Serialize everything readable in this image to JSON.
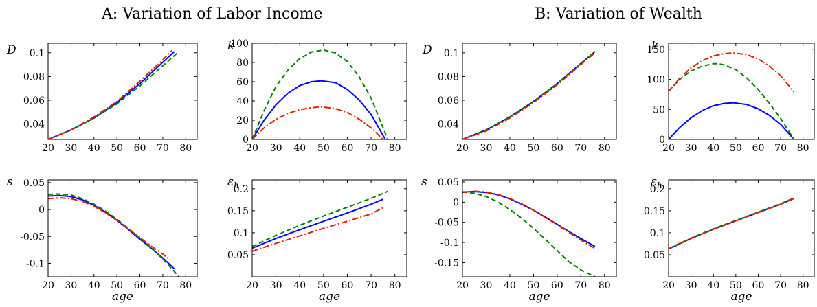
{
  "panels": [
    {
      "title": "A: Variation of Labor Income"
    },
    {
      "title": "B: Variation of Wealth"
    }
  ],
  "colors": {
    "blue": "#0000ff",
    "green": "#008000",
    "red": "#dd2200"
  },
  "chart_data": [
    {
      "type": "line",
      "panel": "A",
      "ylabel": "D",
      "xlabel": "",
      "xlim": [
        20,
        85
      ],
      "ylim": [
        0.027,
        0.108
      ],
      "xticks": [
        20,
        30,
        40,
        50,
        60,
        70,
        80
      ],
      "yticks": [
        0.04,
        0.06,
        0.08,
        0.1
      ],
      "series": [
        {
          "style": "solid",
          "color": "blue",
          "x": [
            20,
            30,
            40,
            50,
            60,
            70,
            75
          ],
          "y": [
            0.027,
            0.035,
            0.045,
            0.058,
            0.074,
            0.092,
            0.101
          ]
        },
        {
          "style": "dashed",
          "color": "green",
          "x": [
            20,
            30,
            40,
            50,
            60,
            70,
            77
          ],
          "y": [
            0.027,
            0.035,
            0.045,
            0.057,
            0.072,
            0.089,
            0.101
          ]
        },
        {
          "style": "dashdot",
          "color": "red",
          "x": [
            20,
            30,
            40,
            50,
            60,
            70,
            74
          ],
          "y": [
            0.027,
            0.035,
            0.046,
            0.059,
            0.076,
            0.094,
            0.102
          ]
        }
      ]
    },
    {
      "type": "line",
      "panel": "A",
      "ylabel": "k",
      "xlabel": "",
      "xlim": [
        20,
        85
      ],
      "ylim": [
        0,
        100
      ],
      "xticks": [
        20,
        30,
        40,
        50,
        60,
        70,
        80
      ],
      "yticks": [
        0,
        20,
        40,
        60,
        80,
        100
      ],
      "series": [
        {
          "style": "solid",
          "color": "blue",
          "x": [
            20,
            25,
            30,
            35,
            40,
            45,
            49,
            55,
            60,
            65,
            70,
            76
          ],
          "y": [
            0,
            20,
            36,
            48,
            56,
            60,
            61,
            59,
            52,
            41,
            26,
            0
          ]
        },
        {
          "style": "dashed",
          "color": "green",
          "x": [
            20,
            25,
            30,
            35,
            40,
            45,
            50,
            55,
            60,
            65,
            70,
            77
          ],
          "y": [
            0,
            30,
            55,
            72,
            84,
            91,
            93,
            90,
            81,
            65,
            43,
            0
          ]
        },
        {
          "style": "dashdot",
          "color": "red",
          "x": [
            20,
            25,
            30,
            35,
            40,
            45,
            49,
            55,
            60,
            65,
            70,
            75
          ],
          "y": [
            0,
            12,
            21,
            27,
            31,
            33,
            34,
            32,
            28,
            21,
            12,
            0
          ]
        }
      ]
    },
    {
      "type": "line",
      "panel": "B",
      "ylabel": "D",
      "xlabel": "",
      "xlim": [
        20,
        85
      ],
      "ylim": [
        0.027,
        0.108
      ],
      "xticks": [
        20,
        30,
        40,
        50,
        60,
        70,
        80
      ],
      "yticks": [
        0.04,
        0.06,
        0.08,
        0.1
      ],
      "series": [
        {
          "style": "solid",
          "color": "blue",
          "x": [
            20,
            30,
            40,
            50,
            60,
            70,
            76
          ],
          "y": [
            0.027,
            0.035,
            0.046,
            0.059,
            0.074,
            0.091,
            0.101
          ]
        },
        {
          "style": "dashed",
          "color": "green",
          "x": [
            20,
            30,
            40,
            50,
            60,
            70,
            76
          ],
          "y": [
            0.027,
            0.035,
            0.046,
            0.059,
            0.074,
            0.091,
            0.101
          ]
        },
        {
          "style": "dashdot",
          "color": "red",
          "x": [
            20,
            30,
            40,
            50,
            60,
            70,
            76
          ],
          "y": [
            0.027,
            0.034,
            0.045,
            0.058,
            0.073,
            0.09,
            0.1
          ]
        }
      ]
    },
    {
      "type": "line",
      "panel": "B",
      "ylabel": "k",
      "xlabel": "",
      "xlim": [
        20,
        85
      ],
      "ylim": [
        0,
        160
      ],
      "xticks": [
        20,
        30,
        40,
        50,
        60,
        70,
        80
      ],
      "yticks": [
        0,
        50,
        100,
        150
      ],
      "series": [
        {
          "style": "solid",
          "color": "blue",
          "x": [
            20,
            25,
            30,
            35,
            40,
            45,
            49,
            55,
            60,
            65,
            70,
            76
          ],
          "y": [
            0,
            20,
            36,
            48,
            56,
            60,
            61,
            58,
            51,
            40,
            25,
            0
          ]
        },
        {
          "style": "dashed",
          "color": "green",
          "x": [
            20,
            25,
            30,
            35,
            40,
            42,
            45,
            50,
            55,
            60,
            65,
            70,
            76
          ],
          "y": [
            80,
            100,
            114,
            122,
            126,
            126,
            124,
            116,
            102,
            83,
            60,
            35,
            0
          ]
        },
        {
          "style": "dashdot",
          "color": "red",
          "x": [
            20,
            25,
            30,
            35,
            40,
            45,
            49,
            55,
            60,
            65,
            70,
            76
          ],
          "y": [
            80,
            102,
            119,
            131,
            139,
            143,
            144,
            141,
            134,
            122,
            106,
            79
          ]
        }
      ]
    },
    {
      "type": "line",
      "panel": "A",
      "ylabel": "s",
      "xlabel": "age",
      "xlim": [
        20,
        85
      ],
      "ylim": [
        -0.125,
        0.055
      ],
      "xticks": [
        20,
        30,
        40,
        50,
        60,
        70,
        80
      ],
      "yticks": [
        -0.1,
        -0.05,
        0,
        0.05
      ],
      "series": [
        {
          "style": "solid",
          "color": "blue",
          "x": [
            20,
            25,
            30,
            35,
            40,
            45,
            50,
            55,
            60,
            65,
            70,
            75
          ],
          "y": [
            0.025,
            0.026,
            0.024,
            0.018,
            0.008,
            -0.005,
            -0.02,
            -0.037,
            -0.055,
            -0.072,
            -0.09,
            -0.11
          ]
        },
        {
          "style": "dashed",
          "color": "green",
          "x": [
            20,
            25,
            30,
            35,
            40,
            45,
            50,
            55,
            60,
            65,
            70,
            75,
            77
          ],
          "y": [
            0.028,
            0.029,
            0.027,
            0.02,
            0.01,
            -0.003,
            -0.018,
            -0.035,
            -0.053,
            -0.071,
            -0.092,
            -0.115,
            -0.125
          ]
        },
        {
          "style": "dashdot",
          "color": "red",
          "x": [
            20,
            25,
            30,
            35,
            40,
            45,
            50,
            55,
            60,
            65,
            70,
            73
          ],
          "y": [
            0.02,
            0.022,
            0.02,
            0.015,
            0.006,
            -0.006,
            -0.02,
            -0.036,
            -0.052,
            -0.068,
            -0.083,
            -0.093
          ]
        }
      ]
    },
    {
      "type": "line",
      "panel": "A",
      "ylabel": "ε_h",
      "xlabel": "age",
      "xlim": [
        20,
        85
      ],
      "ylim": [
        0,
        0.22
      ],
      "xticks": [
        20,
        30,
        40,
        50,
        60,
        70,
        80
      ],
      "yticks": [
        0.05,
        0.1,
        0.15,
        0.2
      ],
      "series": [
        {
          "style": "solid",
          "color": "blue",
          "x": [
            20,
            30,
            40,
            50,
            60,
            70,
            75
          ],
          "y": [
            0.065,
            0.087,
            0.107,
            0.126,
            0.145,
            0.165,
            0.176
          ]
        },
        {
          "style": "dashed",
          "color": "green",
          "x": [
            20,
            30,
            40,
            50,
            60,
            70,
            77
          ],
          "y": [
            0.069,
            0.094,
            0.117,
            0.138,
            0.158,
            0.178,
            0.194
          ]
        },
        {
          "style": "dashdot",
          "color": "red",
          "x": [
            20,
            30,
            40,
            50,
            60,
            70,
            75
          ],
          "y": [
            0.058,
            0.076,
            0.093,
            0.11,
            0.126,
            0.143,
            0.157
          ]
        }
      ]
    },
    {
      "type": "line",
      "panel": "B",
      "ylabel": "s",
      "xlabel": "age",
      "xlim": [
        20,
        85
      ],
      "ylim": [
        -0.185,
        0.055
      ],
      "xticks": [
        20,
        30,
        40,
        50,
        60,
        70,
        80
      ],
      "yticks": [
        -0.15,
        -0.1,
        -0.05,
        0,
        0.05
      ],
      "series": [
        {
          "style": "solid",
          "color": "blue",
          "x": [
            20,
            25,
            30,
            35,
            40,
            45,
            50,
            55,
            60,
            65,
            70,
            76
          ],
          "y": [
            0.025,
            0.026,
            0.024,
            0.018,
            0.008,
            -0.005,
            -0.02,
            -0.037,
            -0.055,
            -0.073,
            -0.09,
            -0.11
          ]
        },
        {
          "style": "dashed",
          "color": "green",
          "x": [
            20,
            25,
            30,
            35,
            40,
            45,
            50,
            55,
            60,
            65,
            70,
            76
          ],
          "y": [
            0.025,
            0.022,
            0.014,
            0.0,
            -0.018,
            -0.04,
            -0.065,
            -0.092,
            -0.12,
            -0.148,
            -0.168,
            -0.185
          ]
        },
        {
          "style": "dashdot",
          "color": "red",
          "x": [
            20,
            25,
            30,
            35,
            40,
            45,
            50,
            55,
            60,
            65,
            70,
            76
          ],
          "y": [
            0.024,
            0.027,
            0.025,
            0.019,
            0.009,
            -0.004,
            -0.02,
            -0.038,
            -0.056,
            -0.075,
            -0.094,
            -0.115
          ]
        }
      ]
    },
    {
      "type": "line",
      "panel": "B",
      "ylabel": "ε_h",
      "xlabel": "age",
      "xlim": [
        20,
        85
      ],
      "ylim": [
        0,
        0.22
      ],
      "xticks": [
        20,
        30,
        40,
        50,
        60,
        70,
        80
      ],
      "yticks": [
        0.05,
        0.1,
        0.15,
        0.2
      ],
      "series": [
        {
          "style": "solid",
          "color": "blue",
          "x": [
            20,
            30,
            40,
            50,
            60,
            70,
            76
          ],
          "y": [
            0.063,
            0.087,
            0.108,
            0.127,
            0.146,
            0.165,
            0.178
          ]
        },
        {
          "style": "dashed",
          "color": "green",
          "x": [
            20,
            30,
            40,
            50,
            60,
            70,
            76
          ],
          "y": [
            0.064,
            0.088,
            0.109,
            0.128,
            0.147,
            0.166,
            0.179
          ]
        },
        {
          "style": "dashdot",
          "color": "red",
          "x": [
            20,
            30,
            40,
            50,
            60,
            70,
            76
          ],
          "y": [
            0.063,
            0.087,
            0.108,
            0.127,
            0.146,
            0.165,
            0.178
          ]
        }
      ]
    }
  ]
}
